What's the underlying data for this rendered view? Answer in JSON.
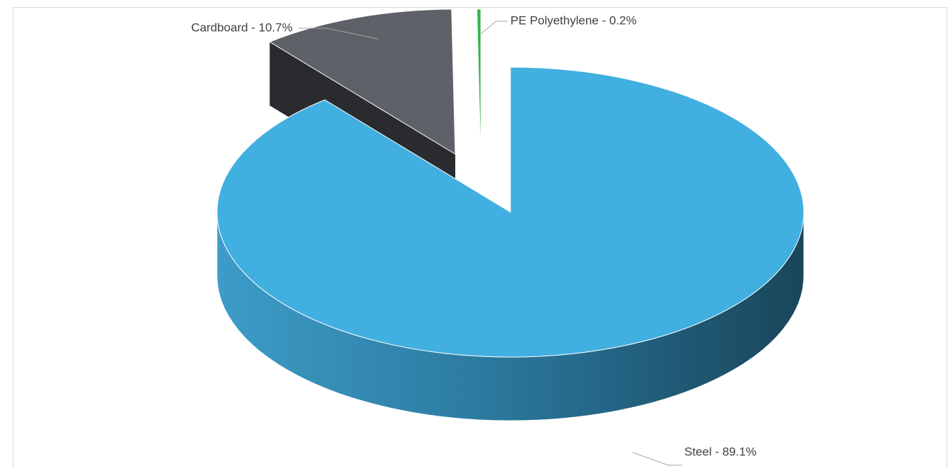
{
  "chart_data": {
    "type": "pie",
    "title": "",
    "style": "3d-exploded",
    "categories": [
      "Steel",
      "Cardboard",
      "PE Polyethylene"
    ],
    "values": [
      89.1,
      10.7,
      0.2
    ],
    "labels": [
      "Steel - 89.1%",
      "Cardboard - 10.7%",
      "PE Polyethylene - 0.2%"
    ],
    "colors": [
      "#41afe0",
      "#5e6167",
      "#34b34a"
    ],
    "legend": "none"
  }
}
